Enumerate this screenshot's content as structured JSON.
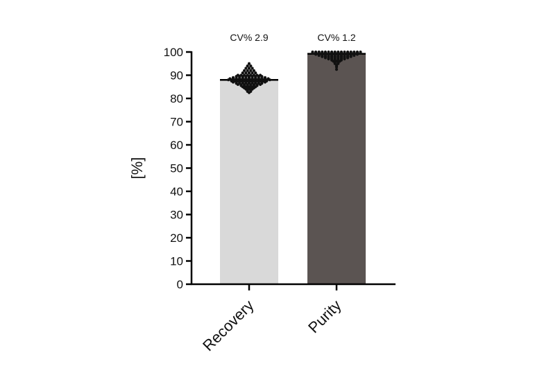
{
  "chart_data": {
    "type": "bar",
    "categories": [
      "Recovery",
      "Purity"
    ],
    "values": [
      88,
      99.2
    ],
    "ylabel": "[%]",
    "xlabel": "",
    "ylim": [
      0,
      100
    ],
    "yticks": [
      0,
      10,
      20,
      30,
      40,
      50,
      60,
      70,
      80,
      90,
      100
    ],
    "annotations": [
      "CV% 2.9",
      "CV% 1.2"
    ],
    "bar_colors": [
      "#d9d9d9",
      "#5b5452"
    ],
    "point_color": "#111111",
    "points": [
      {
        "category": "Recovery",
        "values": [
          95,
          94,
          94,
          93,
          93,
          93,
          92,
          92,
          92,
          92,
          91,
          91,
          91,
          91,
          91,
          90,
          90,
          90,
          90,
          90,
          90,
          90,
          90,
          89.5,
          89.5,
          89.5,
          89.5,
          89.5,
          89.5,
          89.5,
          89.5,
          89.5,
          89,
          89,
          89,
          89,
          89,
          89,
          89,
          89,
          89,
          89,
          89,
          88.5,
          88.5,
          88.5,
          88.5,
          88.5,
          88.5,
          88.5,
          88.5,
          88.5,
          88.5,
          88.5,
          88.5,
          88.5,
          88,
          88,
          88,
          88,
          88,
          88,
          88,
          88,
          88,
          88,
          88,
          88,
          88,
          88,
          87.5,
          87.5,
          87.5,
          87.5,
          87.5,
          87.5,
          87.5,
          87.5,
          87.5,
          87.5,
          87.5,
          87.5,
          87,
          87,
          87,
          87,
          87,
          87,
          87,
          87,
          87,
          87,
          87,
          86.5,
          86.5,
          86.5,
          86.5,
          86.5,
          86.5,
          86.5,
          86.5,
          86.5,
          86,
          86,
          86,
          86,
          86,
          86,
          86,
          86,
          85.5,
          85.5,
          85.5,
          85.5,
          85.5,
          85.5,
          85,
          85,
          85,
          85,
          85,
          84.5,
          84.5,
          84.5,
          84.5,
          84,
          84,
          84,
          83.5,
          83.5,
          83,
          83,
          82.5
        ]
      },
      {
        "category": "Purity",
        "values": [
          100,
          100,
          100,
          100,
          100,
          100,
          100,
          100,
          100,
          100,
          100,
          100,
          100,
          100,
          100,
          100,
          99.7,
          99.7,
          99.7,
          99.7,
          99.7,
          99.7,
          99.7,
          99.7,
          99.7,
          99.7,
          99.7,
          99.7,
          99.7,
          99.7,
          99.7,
          99.7,
          99.4,
          99.4,
          99.4,
          99.4,
          99.4,
          99.4,
          99.4,
          99.4,
          99.4,
          99.4,
          99.4,
          99.4,
          99.4,
          99.4,
          99.4,
          99.4,
          99,
          99,
          99,
          99,
          99,
          99,
          99,
          99,
          99,
          99,
          99,
          99,
          99,
          99,
          98.5,
          98.5,
          98.5,
          98.5,
          98.5,
          98.5,
          98.5,
          98.5,
          98.5,
          98.5,
          98.5,
          98.5,
          98,
          98,
          98,
          98,
          98,
          98,
          98,
          98,
          98,
          98,
          97.5,
          97.5,
          97.5,
          97.5,
          97.5,
          97.5,
          97.5,
          97.5,
          97,
          97,
          97,
          97,
          97,
          97,
          96.5,
          96.5,
          96.5,
          96.5,
          96,
          96,
          96,
          95.5,
          95.5,
          95,
          95,
          94.5,
          94,
          93.5,
          92.5
        ]
      }
    ]
  }
}
